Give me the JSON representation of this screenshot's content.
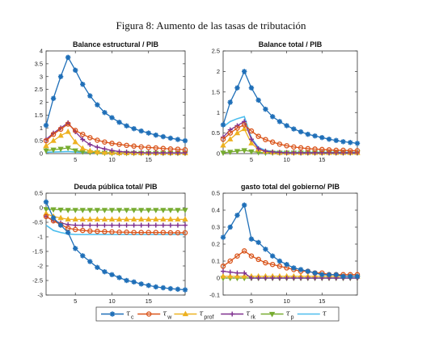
{
  "figure": {
    "title": "Figura 8: Aumento de las tasas de tributación"
  },
  "colors": {
    "tau_c": "#1f6fb8",
    "tau_w": "#d95319",
    "tau_prof": "#edb120",
    "tau_rk": "#7e2f8e",
    "tau_p": "#77ac30",
    "tau": "#4dbeee"
  },
  "legend": [
    {
      "key": "tau_c",
      "symbol": "τ",
      "sub": "c",
      "marker": "star"
    },
    {
      "key": "tau_w",
      "symbol": "τ",
      "sub": "w",
      "marker": "circle"
    },
    {
      "key": "tau_prof",
      "symbol": "τ",
      "sub": "prof",
      "marker": "triangle-up"
    },
    {
      "key": "tau_rk",
      "symbol": "τ",
      "sub": "rk",
      "marker": "plus"
    },
    {
      "key": "tau_p",
      "symbol": "τ",
      "sub": "p",
      "marker": "triangle-down"
    },
    {
      "key": "tau",
      "symbol": "τ",
      "sub": "",
      "marker": "none"
    }
  ],
  "chart_data": [
    {
      "type": "line",
      "title": "Balance estructural / PIB",
      "xlim": [
        1,
        20
      ],
      "ylim": [
        0,
        4
      ],
      "xticks": [
        "5",
        "10",
        "15"
      ],
      "yticks": [
        "0",
        "0.5",
        "1",
        "1.5",
        "2",
        "2.5",
        "3",
        "3.5",
        "4"
      ],
      "series": [
        {
          "key": "tau_c",
          "values": [
            1.1,
            2.15,
            3.0,
            3.75,
            3.25,
            2.7,
            2.25,
            1.9,
            1.6,
            1.4,
            1.22,
            1.08,
            0.97,
            0.88,
            0.8,
            0.72,
            0.66,
            0.6,
            0.55,
            0.5
          ]
        },
        {
          "key": "tau_w",
          "values": [
            0.5,
            0.75,
            0.95,
            1.15,
            0.9,
            0.75,
            0.62,
            0.52,
            0.45,
            0.4,
            0.36,
            0.32,
            0.29,
            0.26,
            0.24,
            0.22,
            0.2,
            0.18,
            0.17,
            0.15
          ]
        },
        {
          "key": "tau_prof",
          "values": [
            0.3,
            0.5,
            0.7,
            0.85,
            0.45,
            0.2,
            0.1,
            0.06,
            0.04,
            0.03,
            0.02,
            0.02,
            0.02,
            0.02,
            0.02,
            0.02,
            0.02,
            0.02,
            0.02,
            0.02
          ]
        },
        {
          "key": "tau_rk",
          "values": [
            0.55,
            0.8,
            1.0,
            1.2,
            0.85,
            0.55,
            0.35,
            0.25,
            0.18,
            0.12,
            0.08,
            0.06,
            0.05,
            0.04,
            0.03,
            0.03,
            0.03,
            0.03,
            0.03,
            0.03
          ]
        },
        {
          "key": "tau_p",
          "values": [
            0.12,
            0.15,
            0.18,
            0.22,
            0.12,
            0.07,
            0.05,
            0.04,
            0.03,
            0.02,
            0.02,
            0.02,
            0.02,
            0.02,
            0.02,
            0.02,
            0.02,
            0.02,
            0.02,
            0.02
          ]
        },
        {
          "key": "tau",
          "values": [
            0.05,
            0.06,
            0.07,
            0.08,
            0.06,
            0.05,
            0.04,
            0.03,
            0.03,
            0.03,
            0.02,
            0.02,
            0.02,
            0.02,
            0.02,
            0.02,
            0.02,
            0.02,
            0.02,
            0.02
          ]
        }
      ]
    },
    {
      "type": "line",
      "title": "Balance total / PIB",
      "xlim": [
        1,
        20
      ],
      "ylim": [
        0,
        2.5
      ],
      "xticks": [
        "5",
        "10",
        "15"
      ],
      "yticks": [
        "0",
        "0.5",
        "1",
        "1.5",
        "2",
        "2.5"
      ],
      "series": [
        {
          "key": "tau_c",
          "values": [
            0.7,
            1.25,
            1.6,
            2.0,
            1.6,
            1.3,
            1.08,
            0.9,
            0.78,
            0.68,
            0.6,
            0.53,
            0.47,
            0.43,
            0.39,
            0.35,
            0.32,
            0.29,
            0.27,
            0.25
          ]
        },
        {
          "key": "tau_w",
          "values": [
            0.35,
            0.5,
            0.62,
            0.7,
            0.55,
            0.42,
            0.34,
            0.28,
            0.23,
            0.19,
            0.16,
            0.14,
            0.12,
            0.11,
            0.1,
            0.09,
            0.08,
            0.08,
            0.07,
            0.07
          ]
        },
        {
          "key": "tau_prof",
          "values": [
            0.2,
            0.35,
            0.5,
            0.6,
            0.25,
            0.1,
            0.05,
            0.03,
            0.02,
            0.02,
            0.02,
            0.02,
            0.02,
            0.02,
            0.02,
            0.02,
            0.02,
            0.02,
            0.02,
            0.02
          ]
        },
        {
          "key": "tau_rk",
          "values": [
            0.4,
            0.58,
            0.68,
            0.78,
            0.35,
            0.12,
            0.06,
            0.04,
            0.03,
            0.02,
            0.02,
            0.02,
            0.02,
            0.02,
            0.02,
            0.02,
            0.02,
            0.02,
            0.02,
            0.02
          ]
        },
        {
          "key": "tau_p",
          "values": [
            0.02,
            0.04,
            0.06,
            0.08,
            0.05,
            0.03,
            0.02,
            0.02,
            0.02,
            0.02,
            0.02,
            0.02,
            0.02,
            0.02,
            0.02,
            0.02,
            0.02,
            0.02,
            0.02,
            0.02
          ]
        },
        {
          "key": "tau",
          "values": [
            0.65,
            0.78,
            0.85,
            0.9,
            0.38,
            0.15,
            0.08,
            0.05,
            0.04,
            0.03,
            0.03,
            0.03,
            0.03,
            0.03,
            0.03,
            0.03,
            0.03,
            0.03,
            0.03,
            0.03
          ]
        }
      ]
    },
    {
      "type": "line",
      "title": "Deuda pública total/ PIB",
      "xlim": [
        1,
        20
      ],
      "ylim": [
        -3,
        0.5
      ],
      "xticks": [
        "5",
        "10",
        "15"
      ],
      "yticks": [
        "-3",
        "-2.5",
        "-2",
        "-1.5",
        "-1",
        "-0.5",
        "0",
        "0.5"
      ],
      "series": [
        {
          "key": "tau_c",
          "values": [
            0.2,
            -0.35,
            -0.6,
            -0.85,
            -1.4,
            -1.65,
            -1.85,
            -2.05,
            -2.2,
            -2.3,
            -2.4,
            -2.5,
            -2.55,
            -2.62,
            -2.67,
            -2.72,
            -2.75,
            -2.78,
            -2.8,
            -2.82
          ]
        },
        {
          "key": "tau_w",
          "values": [
            -0.3,
            -0.45,
            -0.58,
            -0.7,
            -0.75,
            -0.78,
            -0.8,
            -0.81,
            -0.82,
            -0.83,
            -0.84,
            -0.84,
            -0.85,
            -0.85,
            -0.85,
            -0.85,
            -0.85,
            -0.86,
            -0.86,
            -0.86
          ]
        },
        {
          "key": "tau_prof",
          "values": [
            -0.2,
            -0.3,
            -0.35,
            -0.4,
            -0.4,
            -0.4,
            -0.4,
            -0.4,
            -0.4,
            -0.4,
            -0.4,
            -0.4,
            -0.4,
            -0.4,
            -0.4,
            -0.4,
            -0.4,
            -0.4,
            -0.4,
            -0.4
          ]
        },
        {
          "key": "tau_rk",
          "values": [
            -0.3,
            -0.45,
            -0.52,
            -0.58,
            -0.6,
            -0.6,
            -0.6,
            -0.6,
            -0.6,
            -0.6,
            -0.6,
            -0.6,
            -0.6,
            -0.6,
            -0.6,
            -0.6,
            -0.6,
            -0.6,
            -0.6,
            -0.6
          ]
        },
        {
          "key": "tau_p",
          "values": [
            -0.05,
            -0.06,
            -0.07,
            -0.08,
            -0.08,
            -0.08,
            -0.08,
            -0.08,
            -0.08,
            -0.08,
            -0.08,
            -0.08,
            -0.08,
            -0.08,
            -0.08,
            -0.08,
            -0.08,
            -0.08,
            -0.08,
            -0.08
          ]
        },
        {
          "key": "tau",
          "values": [
            -0.6,
            -0.78,
            -0.85,
            -0.9,
            -0.92,
            -0.92,
            -0.92,
            -0.92,
            -0.92,
            -0.92,
            -0.92,
            -0.92,
            -0.92,
            -0.92,
            -0.92,
            -0.92,
            -0.92,
            -0.92,
            -0.92,
            -0.92
          ]
        }
      ]
    },
    {
      "type": "line",
      "title": "gasto total del gobierno/ PIB",
      "xlim": [
        1,
        20
      ],
      "ylim": [
        -0.1,
        0.5
      ],
      "xticks": [
        "5",
        "10",
        "15"
      ],
      "yticks": [
        "-0.1",
        "0",
        "0.1",
        "0.2",
        "0.3",
        "0.4",
        "0.5"
      ],
      "series": [
        {
          "key": "tau_c",
          "values": [
            0.24,
            0.3,
            0.37,
            0.43,
            0.23,
            0.21,
            0.17,
            0.13,
            0.1,
            0.08,
            0.06,
            0.05,
            0.04,
            0.03,
            0.02,
            0.02,
            0.02,
            0.01,
            0.01,
            0.01
          ]
        },
        {
          "key": "tau_w",
          "values": [
            0.07,
            0.1,
            0.13,
            0.16,
            0.13,
            0.11,
            0.09,
            0.08,
            0.07,
            0.06,
            0.05,
            0.04,
            0.04,
            0.03,
            0.03,
            0.02,
            0.02,
            0.02,
            0.02,
            0.02
          ]
        },
        {
          "key": "tau_prof",
          "values": [
            0.01,
            0.01,
            0.01,
            0.01,
            0.01,
            0.01,
            0.01,
            0.01,
            0.01,
            0.01,
            0.01,
            0.01,
            0.01,
            0.01,
            0.01,
            0.01,
            0.01,
            0.01,
            0.01,
            0.01
          ]
        },
        {
          "key": "tau_rk",
          "values": [
            0.04,
            0.035,
            0.03,
            0.03,
            0.0,
            0.0,
            0.0,
            0.0,
            0.0,
            0.0,
            0.0,
            0.0,
            0.0,
            0.0,
            0.0,
            0.0,
            0.0,
            0.0,
            0.0,
            0.0
          ]
        },
        {
          "key": "tau_p",
          "values": [
            0.0,
            0.0,
            0.0,
            0.0,
            0.0,
            0.0,
            0.0,
            0.0,
            0.0,
            0.0,
            0.0,
            0.0,
            0.0,
            0.0,
            0.0,
            0.0,
            0.0,
            0.0,
            0.0,
            0.0
          ]
        },
        {
          "key": "tau",
          "values": [
            0.0,
            0.0,
            0.0,
            0.0,
            0.0,
            0.0,
            0.0,
            0.0,
            0.0,
            0.0,
            0.0,
            0.0,
            0.0,
            0.0,
            0.0,
            0.0,
            0.0,
            0.0,
            0.0,
            0.0
          ]
        }
      ]
    }
  ]
}
